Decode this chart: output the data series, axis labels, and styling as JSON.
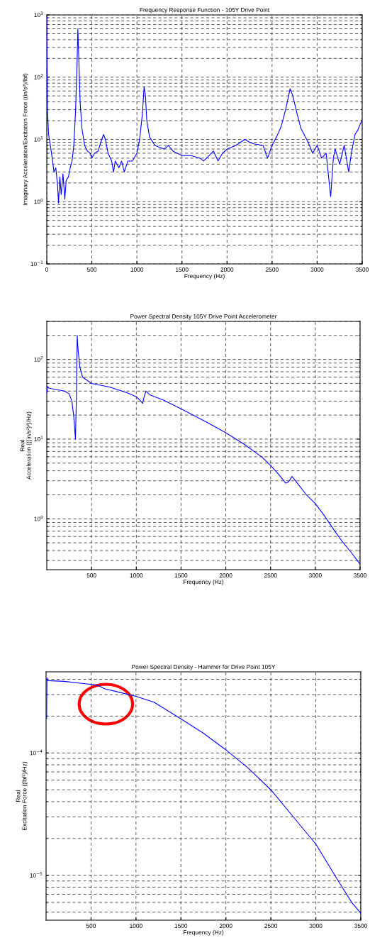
{
  "chart_data": [
    {
      "type": "line",
      "title": "Frequency Response Function - 105Y Drive Point",
      "xlabel": "Frequency (Hz)",
      "ylabel": "Imaginary Acceleration/Excitation Force ((in/s²)/lbf)",
      "log": "y",
      "grid": true,
      "xlim": [
        0,
        3500
      ],
      "ylim": [
        0.1,
        1000
      ],
      "xticks": [
        0,
        500,
        1000,
        1500,
        2000,
        2500,
        3000,
        3500
      ],
      "yticks": [
        {
          "value": 0.1,
          "label": "10$^{−1}$"
        },
        {
          "value": 1,
          "label": "10$^{0}$"
        },
        {
          "value": 10,
          "label": "10$^{1}$"
        },
        {
          "value": 100,
          "label": "10$^{2}$"
        },
        {
          "value": 1000,
          "label": "10$^{3}$"
        }
      ],
      "x": [
        0,
        8,
        20,
        40,
        60,
        80,
        100,
        120,
        130,
        145,
        160,
        180,
        200,
        215,
        240,
        260,
        280,
        300,
        320,
        335,
        345,
        355,
        370,
        390,
        420,
        450,
        480,
        500,
        530,
        570,
        600,
        630,
        650,
        680,
        720,
        740,
        760,
        800,
        830,
        860,
        900,
        950,
        1000,
        1030,
        1060,
        1080,
        1095,
        1110,
        1140,
        1200,
        1300,
        1350,
        1400,
        1500,
        1600,
        1700,
        1740,
        1800,
        1850,
        1900,
        1950,
        2000,
        2100,
        2150,
        2200,
        2250,
        2300,
        2400,
        2450,
        2500,
        2550,
        2600,
        2650,
        2700,
        2730,
        2780,
        2820,
        2900,
        2950,
        3000,
        3050,
        3100,
        3150,
        3180,
        3200,
        3250,
        3300,
        3350,
        3380,
        3420,
        3450,
        3480,
        3500
      ],
      "series": [
        {
          "color": "#0000ff",
          "values": [
            950,
            30,
            12,
            8,
            5,
            3,
            3.5,
            1.8,
            0.95,
            2.5,
            1.3,
            2.8,
            1.1,
            2.2,
            2.5,
            3.5,
            4.5,
            8,
            30,
            150,
            600,
            200,
            40,
            15,
            8,
            6.5,
            6,
            5,
            6,
            6.5,
            9,
            12,
            10,
            6,
            4.5,
            3,
            4.5,
            3.5,
            4.5,
            3,
            4.5,
            4.5,
            6,
            10,
            25,
            70,
            50,
            20,
            11,
            8,
            7,
            8,
            6.5,
            5.5,
            5.5,
            5,
            4.5,
            5.5,
            6.5,
            4.5,
            6,
            7,
            8,
            9,
            10,
            9,
            8.5,
            8,
            5,
            8,
            11,
            16,
            30,
            65,
            50,
            25,
            15,
            9,
            6,
            8,
            5,
            6,
            1.2,
            5,
            7,
            4,
            8,
            3,
            6,
            12,
            14,
            18,
            20
          ]
        }
      ]
    },
    {
      "type": "line",
      "title": "Power Spectral Density 105Y Drive Point Accelerometer",
      "xlabel": "Frequency (Hz)",
      "ylabel": "Real\nAcceleration (((in/s²)²)/Hz)",
      "log": "y",
      "grid": true,
      "xlim": [
        0,
        3500
      ],
      "ylim": [
        0.23,
        300
      ],
      "xticks": [
        500,
        1000,
        1500,
        2000,
        2500,
        3000,
        3500
      ],
      "yticks": [
        {
          "value": 1,
          "label": "10$^{0}$"
        },
        {
          "value": 10,
          "label": "10$^{1}$"
        },
        {
          "value": 100,
          "label": "10$^{2}$"
        }
      ],
      "x": [
        0,
        10,
        20,
        50,
        100,
        200,
        250,
        280,
        300,
        315,
        320,
        330,
        340,
        350,
        370,
        400,
        500,
        700,
        900,
        1000,
        1050,
        1070,
        1090,
        1110,
        1150,
        1300,
        1500,
        1800,
        2000,
        2200,
        2400,
        2500,
        2600,
        2670,
        2700,
        2740,
        2800,
        2900,
        3000,
        3100,
        3200,
        3300,
        3400,
        3500
      ],
      "series": [
        {
          "color": "#0000ff",
          "values": [
            38,
            46,
            44,
            43,
            42,
            40,
            37,
            30,
            20,
            12,
            10,
            30,
            200,
            130,
            80,
            60,
            50,
            45,
            38,
            34,
            30,
            28,
            35,
            40,
            36,
            31,
            24,
            16,
            12,
            8.7,
            6,
            4.7,
            3.5,
            2.8,
            2.9,
            3.4,
            2.8,
            2,
            1.55,
            1.1,
            0.75,
            0.52,
            0.38,
            0.27
          ]
        }
      ]
    },
    {
      "type": "line",
      "title": "Power Spectral Density - Hammer for Drive Point 105Y",
      "xlabel": "Frequency (Hz)",
      "ylabel": "Real\nExcitation Force ((lbf²)/Hz)",
      "log": "y",
      "grid": true,
      "xlim": [
        0,
        3500
      ],
      "ylim": [
        4.3e-06,
        0.00046
      ],
      "xticks": [
        500,
        1000,
        1500,
        2000,
        2500,
        3000,
        3500
      ],
      "yticks": [
        {
          "value": 1e-05,
          "label": "10$^{−5}$"
        },
        {
          "value": 0.0001,
          "label": "10$^{−4}$"
        }
      ],
      "x": [
        6,
        10,
        20,
        200,
        400,
        550,
        600,
        650,
        800,
        1000,
        1200,
        1500,
        1750,
        2000,
        2250,
        2500,
        2750,
        3000,
        3250,
        3400,
        3500
      ],
      "series": [
        {
          "color": "#0000ff",
          "values": [
            0.00019,
            0.00041,
            0.00039,
            0.000385,
            0.00037,
            0.00036,
            0.00035,
            0.000335,
            0.000315,
            0.00029,
            0.00026,
            0.00019,
            0.000145,
            0.000106,
            7.5e-05,
            5e-05,
            3e-05,
            1.8e-05,
            9e-06,
            6e-06,
            4.9e-06
          ]
        }
      ]
    }
  ]
}
